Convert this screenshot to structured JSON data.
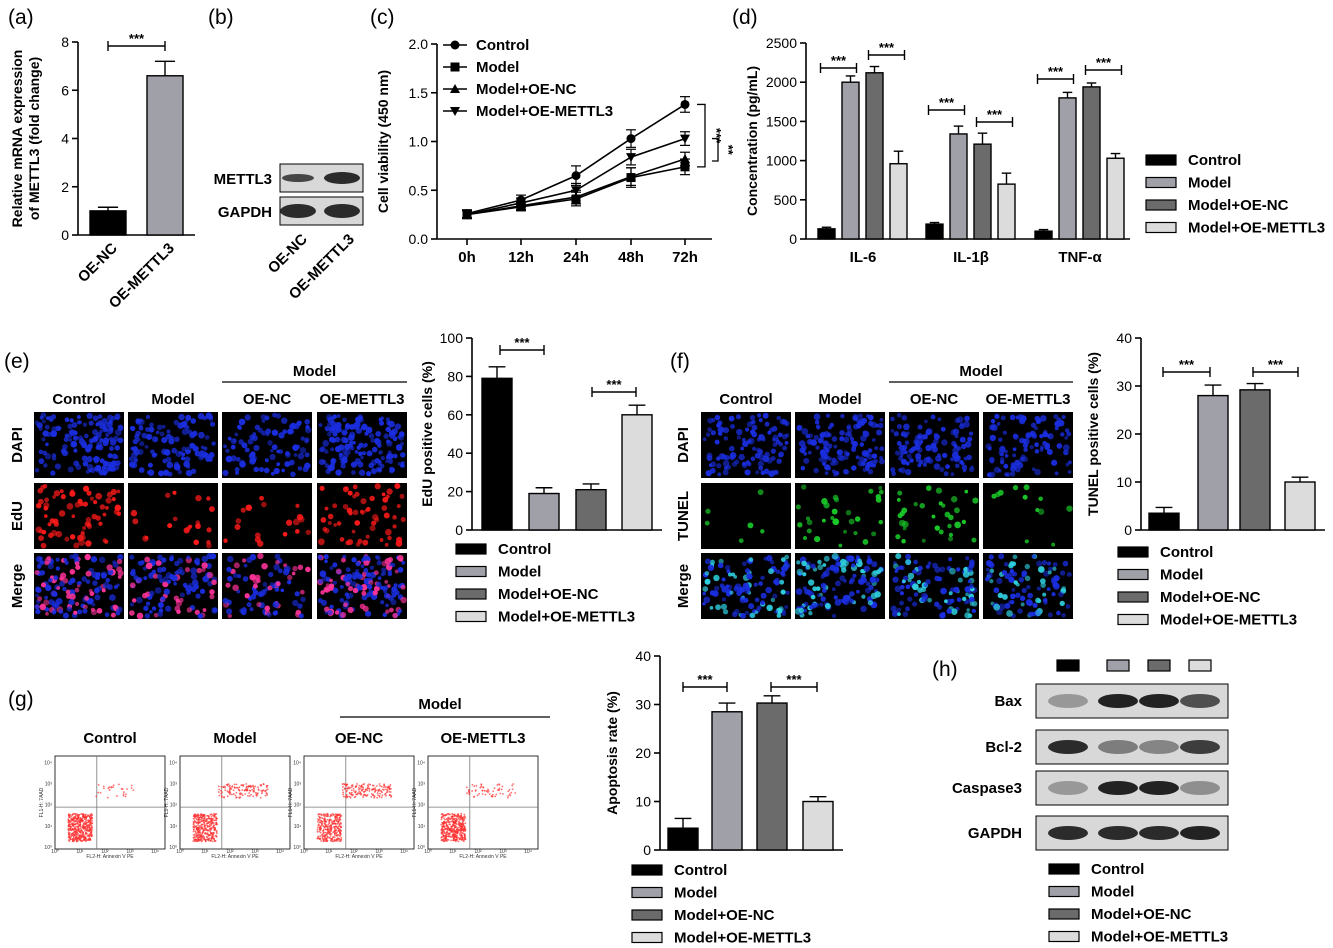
{
  "colors": {
    "control": "#000000",
    "model": "#a0a0a8",
    "model_oe_nc": "#6b6b6b",
    "model_oe_mettl3": "#dcdcdc",
    "dapi": "#1a2ee0",
    "edu": "#ff1a1a",
    "tunel": "#1acc2a",
    "flow_dot": "#ff3030"
  },
  "legend_labels": [
    "Control",
    "Model",
    "Model+OE-NC",
    "Model+OE-METTL3"
  ],
  "panels": {
    "a": {
      "label": "(a)",
      "sig": "***"
    },
    "b": {
      "label": "(b)",
      "bands": [
        "METTL3",
        "GAPDH"
      ],
      "lanes": [
        "OE-NC",
        "OE-METTL3"
      ]
    },
    "c": {
      "label": "(c)",
      "sig": [
        "***",
        "**"
      ]
    },
    "d": {
      "label": "(d)",
      "sig": "***"
    },
    "e": {
      "label": "(e)",
      "col_headers": [
        "Control",
        "Model",
        "OE-NC",
        "OE-METTL3"
      ],
      "group_header": "Model",
      "row_labels": [
        "DAPI",
        "EdU",
        "Merge"
      ],
      "sig": "***"
    },
    "f": {
      "label": "(f)",
      "col_headers": [
        "Control",
        "Model",
        "OE-NC",
        "OE-METTL3"
      ],
      "group_header": "Model",
      "row_labels": [
        "DAPI",
        "TUNEL",
        "Merge"
      ],
      "sig": "***"
    },
    "g": {
      "label": "(g)",
      "col_headers": [
        "Control",
        "Model",
        "OE-NC",
        "OE-METTL3"
      ],
      "group_header": "Model",
      "flow_xlabel": "FL2-H: Annexin V PE",
      "flow_ylabel": "FL1-H: 7AAD",
      "flow_ticks": [
        "10⁰",
        "10¹",
        "10²",
        "10³",
        "10⁴"
      ],
      "sig": "***"
    },
    "h": {
      "label": "(h)",
      "bands": [
        "Bax",
        "Bcl-2",
        "Caspase3",
        "GAPDH"
      ]
    }
  },
  "chart_data": [
    {
      "id": "a",
      "type": "bar",
      "categories": [
        "OE-NC",
        "OE-METTL3"
      ],
      "values": [
        1.0,
        6.6
      ],
      "errors": [
        0.15,
        0.6
      ],
      "ylabel": "Relative mRNA expression of METTL3 (fold change)",
      "ylim": [
        0,
        8
      ],
      "yticks": [
        0,
        2,
        4,
        6,
        8
      ]
    },
    {
      "id": "c",
      "type": "line",
      "x": [
        "0h",
        "12h",
        "24h",
        "48h",
        "72h"
      ],
      "ylabel": "Cell viability (450 nm)",
      "ylim": [
        0.0,
        2.0
      ],
      "yticks": [
        "0.0",
        "0.5",
        "1.0",
        "1.5",
        "2.0"
      ],
      "legend_position": "top-left",
      "series": [
        {
          "name": "Control",
          "values": [
            0.26,
            0.4,
            0.65,
            1.03,
            1.38
          ],
          "errors": [
            0.04,
            0.05,
            0.1,
            0.09,
            0.08
          ]
        },
        {
          "name": "Model",
          "values": [
            0.25,
            0.33,
            0.41,
            0.63,
            0.74
          ],
          "errors": [
            0.04,
            0.04,
            0.07,
            0.1,
            0.08
          ]
        },
        {
          "name": "Model+OE-NC",
          "values": [
            0.25,
            0.34,
            0.43,
            0.64,
            0.82
          ],
          "errors": [
            0.04,
            0.04,
            0.07,
            0.09,
            0.07
          ]
        },
        {
          "name": "Model+OE-METTL3",
          "values": [
            0.25,
            0.37,
            0.5,
            0.84,
            1.03
          ],
          "errors": [
            0.04,
            0.05,
            0.07,
            0.08,
            0.07
          ]
        }
      ]
    },
    {
      "id": "d",
      "type": "bar",
      "categories": [
        "IL-6",
        "IL-1β",
        "TNF-α"
      ],
      "ylabel": "Concentration (pg/mL)",
      "ylim": [
        0,
        2500
      ],
      "yticks": [
        0,
        500,
        1000,
        1500,
        2000,
        2500
      ],
      "legend_position": "right",
      "series": [
        {
          "name": "Control",
          "values": [
            130,
            190,
            100
          ],
          "errors": [
            20,
            20,
            20
          ]
        },
        {
          "name": "Model",
          "values": [
            2000,
            1340,
            1800
          ],
          "errors": [
            80,
            100,
            70
          ]
        },
        {
          "name": "Model+OE-NC",
          "values": [
            2120,
            1210,
            1940
          ],
          "errors": [
            80,
            140,
            50
          ]
        },
        {
          "name": "Model+OE-METTL3",
          "values": [
            960,
            700,
            1030
          ],
          "errors": [
            160,
            140,
            60
          ]
        }
      ]
    },
    {
      "id": "e",
      "type": "bar",
      "categories": [
        "Control",
        "Model",
        "Model+OE-NC",
        "Model+OE-METTL3"
      ],
      "values": [
        79,
        19,
        21,
        60
      ],
      "errors": [
        6,
        3,
        3,
        5
      ],
      "ylabel": "EdU positive cells (%)",
      "ylim": [
        0,
        100
      ],
      "yticks": [
        0,
        20,
        40,
        60,
        80,
        100
      ],
      "legend_position": "bottom"
    },
    {
      "id": "f",
      "type": "bar",
      "categories": [
        "Control",
        "Model",
        "Model+OE-NC",
        "Model+OE-METTL3"
      ],
      "values": [
        3.5,
        28,
        29.2,
        10
      ],
      "errors": [
        1.2,
        2.2,
        1.3,
        1.0
      ],
      "ylabel": "TUNEL positive cells (%)",
      "ylim": [
        0,
        40
      ],
      "yticks": [
        0,
        10,
        20,
        30,
        40
      ],
      "legend_position": "bottom"
    },
    {
      "id": "g",
      "type": "bar",
      "categories": [
        "Control",
        "Model",
        "Model+OE-NC",
        "Model+OE-METTL3"
      ],
      "values": [
        4.5,
        28.5,
        30.3,
        10
      ],
      "errors": [
        2,
        1.8,
        1.5,
        1
      ],
      "ylabel": "Apoptosis rate (%)",
      "ylim": [
        0,
        40
      ],
      "yticks": [
        0,
        10,
        20,
        30,
        40
      ],
      "legend_position": "bottom"
    }
  ]
}
